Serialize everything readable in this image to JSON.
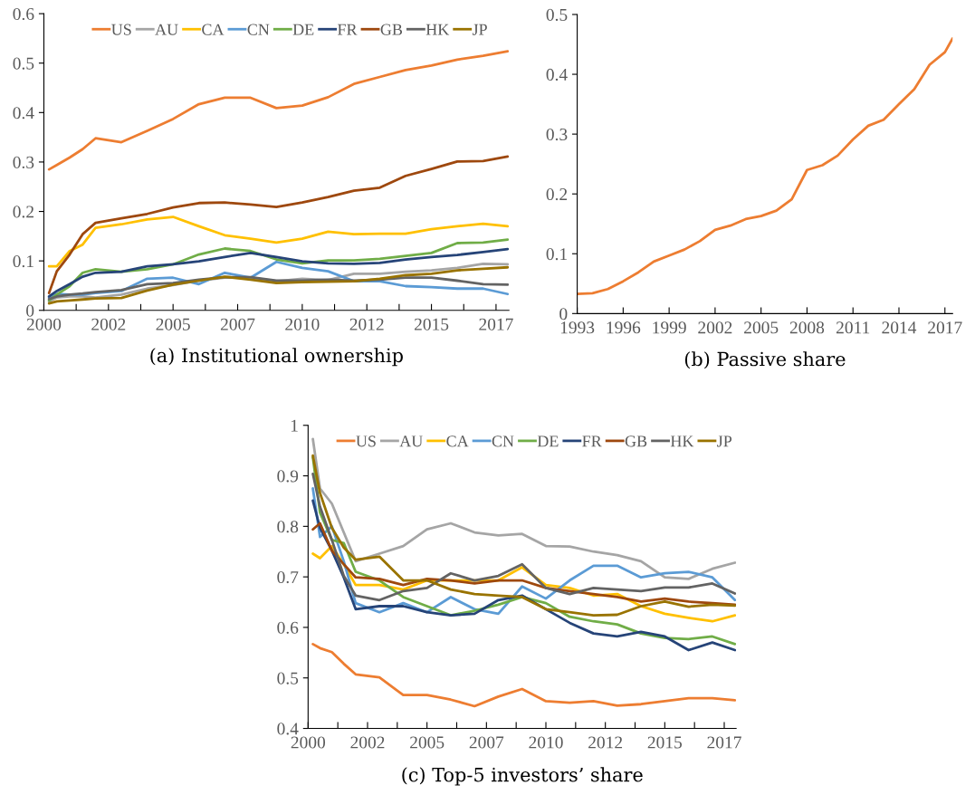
{
  "chart_data": [
    {
      "type": "line",
      "title": "(a) Institutional ownership",
      "legend": "top",
      "x": [
        2000.2,
        2000.5,
        2001,
        2001.5,
        2002,
        2003,
        2004,
        2005,
        2006,
        2007,
        2008,
        2009,
        2010,
        2011,
        2012,
        2013,
        2014,
        2015,
        2016,
        2017,
        2017.95
      ],
      "xlim": [
        2000,
        2018
      ],
      "xticks": [
        2000,
        {
          "value": 2001.25,
          "label": null
        },
        {
          "value": 2002.5,
          "label": "2002"
        },
        {
          "value": 2003.75,
          "label": null
        },
        2005,
        {
          "value": 2006.25,
          "label": null
        },
        {
          "value": 2007.5,
          "label": "2007"
        },
        {
          "value": 2008.75,
          "label": null
        },
        2010,
        {
          "value": 2011.25,
          "label": null
        },
        {
          "value": 2012.5,
          "label": "2012"
        },
        {
          "value": 2013.75,
          "label": null
        },
        2015,
        {
          "value": 2016.25,
          "label": null
        },
        {
          "value": 2017.5,
          "label": "2017"
        }
      ],
      "ylim": [
        0,
        0.6
      ],
      "yticks": [
        0,
        0.1,
        0.2,
        0.3,
        0.4,
        0.5,
        0.6
      ],
      "series": [
        {
          "name": "US",
          "color": "#ed7d31",
          "values": [
            0.285,
            0.294,
            0.309,
            0.326,
            0.348,
            0.34,
            0.363,
            0.387,
            0.417,
            0.43,
            0.43,
            0.409,
            0.414,
            0.431,
            0.458,
            0.472,
            0.486,
            0.495,
            0.507,
            0.515,
            0.524
          ]
        },
        {
          "name": "AU",
          "color": "#a5a5a5",
          "values": [
            0.018,
            0.026,
            0.028,
            0.028,
            0.026,
            0.032,
            0.044,
            0.051,
            0.06,
            0.066,
            0.066,
            0.059,
            0.064,
            0.061,
            0.074,
            0.074,
            0.078,
            0.081,
            0.086,
            0.094,
            0.093
          ]
        },
        {
          "name": "CA",
          "color": "#ffc000",
          "values": [
            0.089,
            0.089,
            0.12,
            0.133,
            0.167,
            0.174,
            0.184,
            0.189,
            0.17,
            0.152,
            0.145,
            0.137,
            0.145,
            0.159,
            0.154,
            0.155,
            0.155,
            0.164,
            0.17,
            0.175,
            0.17
          ]
        },
        {
          "name": "CN",
          "color": "#5b9bd5",
          "values": [
            0.026,
            0.033,
            0.032,
            0.032,
            0.035,
            0.039,
            0.064,
            0.066,
            0.053,
            0.076,
            0.066,
            0.098,
            0.086,
            0.079,
            0.059,
            0.059,
            0.049,
            0.047,
            0.044,
            0.044,
            0.033
          ]
        },
        {
          "name": "DE",
          "color": "#70ad47",
          "values": [
            0.02,
            0.032,
            0.049,
            0.076,
            0.083,
            0.078,
            0.083,
            0.093,
            0.113,
            0.125,
            0.12,
            0.103,
            0.095,
            0.101,
            0.101,
            0.104,
            0.11,
            0.116,
            0.136,
            0.137,
            0.143
          ]
        },
        {
          "name": "FR",
          "color": "#264478",
          "values": [
            0.028,
            0.039,
            0.053,
            0.068,
            0.076,
            0.078,
            0.089,
            0.093,
            0.099,
            0.108,
            0.116,
            0.108,
            0.099,
            0.095,
            0.094,
            0.096,
            0.103,
            0.108,
            0.112,
            0.118,
            0.124
          ]
        },
        {
          "name": "GB",
          "color": "#9e480e",
          "values": [
            0.035,
            0.079,
            0.113,
            0.154,
            0.177,
            0.186,
            0.195,
            0.208,
            0.217,
            0.218,
            0.214,
            0.209,
            0.218,
            0.229,
            0.242,
            0.248,
            0.272,
            0.286,
            0.301,
            0.302,
            0.311
          ]
        },
        {
          "name": "HK",
          "color": "#636363",
          "values": [
            0.023,
            0.028,
            0.032,
            0.034,
            0.037,
            0.041,
            0.053,
            0.055,
            0.062,
            0.067,
            0.067,
            0.06,
            0.06,
            0.062,
            0.06,
            0.062,
            0.066,
            0.066,
            0.06,
            0.053,
            0.052
          ]
        },
        {
          "name": "JP",
          "color": "#997300",
          "values": [
            0.014,
            0.018,
            0.02,
            0.022,
            0.024,
            0.025,
            0.04,
            0.052,
            0.06,
            0.068,
            0.062,
            0.055,
            0.057,
            0.058,
            0.059,
            0.064,
            0.071,
            0.074,
            0.081,
            0.084,
            0.087
          ]
        }
      ]
    },
    {
      "type": "line",
      "title": "(b) Passive share",
      "x": [
        1993,
        1994,
        1995,
        1996,
        1997,
        1998,
        1999,
        2000,
        2001,
        2002,
        2003,
        2004,
        2005,
        2006,
        2007,
        2008,
        2009,
        2010,
        2011,
        2012,
        2013,
        2014,
        2015,
        2016,
        2017,
        2017.5
      ],
      "xlim": [
        1993,
        2017.5
      ],
      "xticks": [
        1993,
        1996,
        1999,
        2002,
        2005,
        2008,
        2011,
        2014,
        2017
      ],
      "ylim": [
        0,
        0.5
      ],
      "yticks": [
        0,
        0.1,
        0.2,
        0.3,
        0.4,
        0.5
      ],
      "series": [
        {
          "color": "#ed7d31",
          "values": [
            0.033,
            0.034,
            0.041,
            0.054,
            0.069,
            0.087,
            0.097,
            0.107,
            0.121,
            0.14,
            0.147,
            0.158,
            0.163,
            0.172,
            0.191,
            0.24,
            0.248,
            0.264,
            0.291,
            0.314,
            0.324,
            0.35,
            0.375,
            0.416,
            0.437,
            0.46
          ]
        }
      ]
    },
    {
      "type": "line",
      "title": "(c) Top-5 investors’ share",
      "legend": "top",
      "x": [
        2000.2,
        2000.5,
        2001,
        2001.5,
        2002,
        2003,
        2004,
        2005,
        2006,
        2007,
        2008,
        2009,
        2010,
        2011,
        2012,
        2013,
        2014,
        2015,
        2016,
        2017,
        2017.95
      ],
      "xlim": [
        2000,
        2018
      ],
      "xticks": [
        2000,
        {
          "value": 2001.25,
          "label": null
        },
        {
          "value": 2002.5,
          "label": "2002"
        },
        {
          "value": 2003.75,
          "label": null
        },
        2005,
        {
          "value": 2006.25,
          "label": null
        },
        {
          "value": 2007.5,
          "label": "2007"
        },
        {
          "value": 2008.75,
          "label": null
        },
        2010,
        {
          "value": 2011.25,
          "label": null
        },
        {
          "value": 2012.5,
          "label": "2012"
        },
        {
          "value": 2013.75,
          "label": null
        },
        2015,
        {
          "value": 2016.25,
          "label": null
        },
        {
          "value": 2017.5,
          "label": "2017"
        }
      ],
      "ylim": [
        0.4,
        1
      ],
      "yticks": [
        0.4,
        0.5,
        0.6,
        0.7,
        0.8,
        0.9,
        1
      ],
      "series": [
        {
          "name": "US",
          "color": "#ed7d31",
          "values": [
            0.567,
            0.559,
            0.551,
            0.528,
            0.507,
            0.501,
            0.466,
            0.466,
            0.457,
            0.444,
            0.463,
            0.478,
            0.454,
            0.451,
            0.454,
            0.445,
            0.448,
            0.454,
            0.46,
            0.46,
            0.456
          ]
        },
        {
          "name": "AU",
          "color": "#a5a5a5",
          "values": [
            0.973,
            0.875,
            0.845,
            0.788,
            0.731,
            0.746,
            0.761,
            0.794,
            0.806,
            0.788,
            0.782,
            0.785,
            0.761,
            0.76,
            0.75,
            0.743,
            0.731,
            0.699,
            0.696,
            0.716,
            0.728
          ]
        },
        {
          "name": "CA",
          "color": "#ffc000",
          "values": [
            0.746,
            0.737,
            0.761,
            0.725,
            0.684,
            0.684,
            0.675,
            0.693,
            0.693,
            0.693,
            0.693,
            0.719,
            0.684,
            0.678,
            0.663,
            0.666,
            0.642,
            0.627,
            0.619,
            0.612,
            0.624
          ]
        },
        {
          "name": "CN",
          "color": "#5b9bd5",
          "values": [
            0.875,
            0.779,
            0.8,
            0.731,
            0.648,
            0.63,
            0.648,
            0.63,
            0.66,
            0.636,
            0.627,
            0.681,
            0.657,
            0.693,
            0.722,
            0.722,
            0.699,
            0.707,
            0.71,
            0.699,
            0.654
          ]
        },
        {
          "name": "DE",
          "color": "#70ad47",
          "values": [
            0.937,
            0.827,
            0.773,
            0.767,
            0.71,
            0.693,
            0.66,
            0.642,
            0.624,
            0.633,
            0.645,
            0.66,
            0.648,
            0.621,
            0.612,
            0.606,
            0.588,
            0.579,
            0.577,
            0.582,
            0.567
          ]
        },
        {
          "name": "FR",
          "color": "#264478",
          "values": [
            0.851,
            0.797,
            0.752,
            0.699,
            0.636,
            0.642,
            0.642,
            0.63,
            0.624,
            0.627,
            0.654,
            0.663,
            0.636,
            0.609,
            0.588,
            0.582,
            0.591,
            0.582,
            0.555,
            0.57,
            0.555
          ]
        },
        {
          "name": "GB",
          "color": "#9e480e",
          "values": [
            0.794,
            0.806,
            0.752,
            0.725,
            0.699,
            0.696,
            0.684,
            0.696,
            0.693,
            0.687,
            0.693,
            0.693,
            0.678,
            0.672,
            0.666,
            0.66,
            0.651,
            0.657,
            0.651,
            0.648,
            0.645
          ]
        },
        {
          "name": "HK",
          "color": "#636363",
          "values": [
            0.904,
            0.839,
            0.773,
            0.702,
            0.663,
            0.654,
            0.672,
            0.678,
            0.707,
            0.693,
            0.702,
            0.725,
            0.678,
            0.666,
            0.678,
            0.675,
            0.672,
            0.679,
            0.679,
            0.687,
            0.667
          ]
        },
        {
          "name": "JP",
          "color": "#997300",
          "values": [
            0.94,
            0.866,
            0.797,
            0.758,
            0.734,
            0.74,
            0.693,
            0.693,
            0.675,
            0.666,
            0.663,
            0.66,
            0.636,
            0.63,
            0.624,
            0.625,
            0.642,
            0.651,
            0.641,
            0.645,
            0.643
          ]
        }
      ]
    }
  ]
}
